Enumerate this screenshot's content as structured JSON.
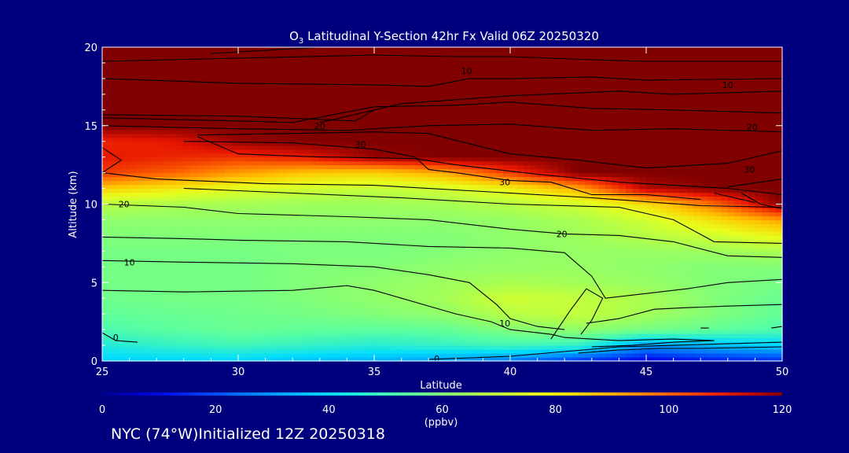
{
  "footer_text": "NYC (74°W)Initialized 12Z 20250318",
  "chart_data": {
    "type": "heatmap",
    "title_species": "O",
    "title_subscript": "3",
    "title_rest": " Latitudinal Y-Section 42hr  Fx Valid 06Z 20250320",
    "xlabel": "Latitude",
    "ylabel": "Altitude (km)",
    "xlim": [
      25,
      50
    ],
    "ylim": [
      0,
      20
    ],
    "x_ticks": [
      "25",
      "30",
      "35",
      "40",
      "45",
      "50"
    ],
    "y_ticks": [
      "0",
      "5",
      "10",
      "15",
      "20"
    ],
    "colorbar": {
      "ticks": [
        "0",
        "20",
        "40",
        "60",
        "80",
        "100",
        "120"
      ],
      "range": [
        0,
        120
      ],
      "units": "(ppbv)"
    },
    "field_description_values": {
      "latitudes": [
        25,
        27.5,
        30,
        32.5,
        35,
        37.5,
        40,
        42.5,
        45,
        47.5,
        50
      ],
      "altitudes": [
        0,
        1,
        2,
        3,
        4,
        5,
        6,
        7,
        8,
        9,
        10,
        11,
        12,
        13,
        14,
        15,
        16,
        17,
        18,
        19,
        20
      ],
      "ozone_ppbv": [
        [
          38,
          38,
          38,
          35,
          33,
          30,
          25,
          15,
          8,
          12,
          15
        ],
        [
          45,
          48,
          50,
          48,
          46,
          48,
          50,
          48,
          30,
          35,
          38
        ],
        [
          52,
          54,
          56,
          55,
          54,
          55,
          60,
          62,
          58,
          55,
          52
        ],
        [
          55,
          56,
          57,
          58,
          60,
          62,
          68,
          70,
          65,
          60,
          55
        ],
        [
          57,
          58,
          58,
          60,
          62,
          65,
          72,
          70,
          66,
          60,
          56
        ],
        [
          58,
          58,
          58,
          60,
          62,
          64,
          66,
          65,
          63,
          60,
          58
        ],
        [
          58,
          58,
          58,
          60,
          60,
          62,
          63,
          63,
          62,
          60,
          60
        ],
        [
          58,
          58,
          58,
          59,
          59,
          60,
          62,
          63,
          63,
          64,
          66
        ],
        [
          60,
          60,
          60,
          60,
          60,
          60,
          62,
          64,
          68,
          72,
          78
        ],
        [
          62,
          62,
          62,
          62,
          62,
          62,
          63,
          66,
          72,
          82,
          92
        ],
        [
          68,
          66,
          65,
          64,
          64,
          65,
          68,
          72,
          82,
          98,
          120
        ],
        [
          85,
          80,
          75,
          72,
          70,
          72,
          78,
          90,
          115,
          120,
          120
        ],
        [
          105,
          100,
          92,
          86,
          84,
          90,
          105,
          120,
          120,
          120,
          120
        ],
        [
          110,
          108,
          106,
          110,
          118,
          120,
          120,
          120,
          120,
          120,
          120
        ],
        [
          108,
          110,
          118,
          120,
          120,
          120,
          120,
          120,
          120,
          120,
          120
        ],
        [
          120,
          120,
          120,
          120,
          120,
          120,
          120,
          120,
          120,
          120,
          120
        ],
        [
          120,
          120,
          120,
          120,
          120,
          120,
          120,
          120,
          120,
          120,
          120
        ],
        [
          120,
          120,
          120,
          120,
          120,
          120,
          120,
          120,
          120,
          120,
          120
        ],
        [
          120,
          120,
          120,
          120,
          120,
          120,
          120,
          120,
          120,
          120,
          120
        ],
        [
          120,
          120,
          120,
          120,
          120,
          120,
          120,
          120,
          120,
          120,
          120
        ],
        [
          120,
          120,
          120,
          120,
          120,
          120,
          120,
          120,
          120,
          120,
          120
        ]
      ]
    },
    "contours": [
      {
        "label": "0",
        "points": [
          [
            25,
            1.8
          ],
          [
            25.5,
            1.3
          ],
          [
            26.3,
            1.2
          ]
        ]
      },
      {
        "label": "0",
        "points": [
          [
            37,
            0.1
          ],
          [
            40,
            0.3
          ],
          [
            42,
            0.6
          ],
          [
            44,
            0.9
          ],
          [
            46,
            1.0
          ],
          [
            48,
            1.1
          ],
          [
            50,
            1.2
          ]
        ]
      },
      {
        "label": "",
        "points": [
          [
            42.5,
            0.5
          ],
          [
            44,
            0.7
          ],
          [
            45.5,
            0.8
          ],
          [
            47,
            0.8
          ],
          [
            50,
            0.9
          ]
        ]
      },
      {
        "label": "",
        "points": [
          [
            43,
            0.9
          ],
          [
            44.5,
            1.0
          ],
          [
            46,
            1.2
          ],
          [
            47.5,
            1.3
          ]
        ]
      },
      {
        "label": "",
        "points": [
          [
            41.5,
            1.4
          ],
          [
            42.2,
            3.2
          ],
          [
            42.8,
            4.6
          ],
          [
            43.4,
            4.0
          ],
          [
            43.0,
            2.6
          ],
          [
            42.6,
            1.7
          ]
        ]
      },
      {
        "label": "",
        "points": [
          [
            47,
            2.1
          ],
          [
            47.3,
            2.1
          ]
        ]
      },
      {
        "label": "",
        "points": [
          [
            49.6,
            2.1
          ],
          [
            50,
            2.2
          ]
        ]
      },
      {
        "label": "10",
        "points": [
          [
            25,
            4.5
          ],
          [
            28,
            4.4
          ],
          [
            32,
            4.5
          ],
          [
            34,
            4.8
          ],
          [
            35,
            4.5
          ],
          [
            36,
            4.0
          ],
          [
            38,
            3.0
          ],
          [
            39.3,
            2.5
          ],
          [
            40,
            2.0
          ],
          [
            41.5,
            1.7
          ],
          [
            42,
            1.5
          ],
          [
            44,
            1.3
          ],
          [
            46,
            1.4
          ],
          [
            47.5,
            1.3
          ]
        ]
      },
      {
        "label": "10",
        "points": [
          [
            25,
            6.4
          ],
          [
            28,
            6.3
          ],
          [
            32,
            6.2
          ],
          [
            35,
            6.0
          ],
          [
            37,
            5.5
          ],
          [
            38.5,
            5.0
          ],
          [
            39.5,
            3.6
          ],
          [
            40,
            2.7
          ],
          [
            41,
            2.2
          ],
          [
            42,
            2.0
          ]
        ]
      },
      {
        "label": "",
        "points": [
          [
            42.8,
            2.4
          ],
          [
            44,
            2.7
          ],
          [
            45.3,
            3.3
          ],
          [
            46.5,
            3.4
          ],
          [
            48,
            3.5
          ],
          [
            50,
            3.6
          ]
        ]
      },
      {
        "label": "",
        "points": [
          [
            25,
            7.9
          ],
          [
            28,
            7.8
          ],
          [
            30,
            7.7
          ],
          [
            34,
            7.6
          ],
          [
            37,
            7.3
          ],
          [
            40,
            7.2
          ],
          [
            42,
            6.9
          ],
          [
            43,
            5.4
          ],
          [
            43.5,
            4.0
          ],
          [
            45,
            4.3
          ],
          [
            46.5,
            4.6
          ],
          [
            48,
            5.0
          ],
          [
            50,
            5.2
          ]
        ]
      },
      {
        "label": "20",
        "points": [
          [
            25,
            10.0
          ],
          [
            28,
            9.8
          ],
          [
            30,
            9.4
          ],
          [
            34,
            9.2
          ],
          [
            37,
            9.0
          ],
          [
            40,
            8.4
          ],
          [
            42,
            8.1
          ],
          [
            44,
            8.0
          ],
          [
            46,
            7.6
          ],
          [
            48,
            6.7
          ],
          [
            50,
            6.6
          ]
        ]
      },
      {
        "label": "20",
        "points": [
          [
            28,
            11.0
          ],
          [
            32,
            10.7
          ],
          [
            36,
            10.4
          ],
          [
            40,
            10.0
          ],
          [
            44,
            9.8
          ],
          [
            46,
            9.0
          ],
          [
            47.5,
            7.6
          ],
          [
            50,
            7.5
          ]
        ]
      },
      {
        "label": "",
        "points": [
          [
            25,
            13.6
          ],
          [
            25.7,
            12.8
          ],
          [
            25,
            12.0
          ],
          [
            27,
            11.6
          ],
          [
            31,
            11.3
          ],
          [
            35,
            11.2
          ],
          [
            39,
            10.8
          ],
          [
            43,
            10.4
          ],
          [
            47,
            9.9
          ],
          [
            50,
            9.8
          ]
        ]
      },
      {
        "label": "30",
        "points": [
          [
            28,
            14.0
          ],
          [
            32,
            13.9
          ],
          [
            35,
            13.5
          ],
          [
            36.5,
            13.0
          ],
          [
            37,
            12.2
          ],
          [
            38,
            12.0
          ],
          [
            40,
            11.5
          ],
          [
            41.5,
            11.4
          ],
          [
            43,
            10.6
          ],
          [
            45,
            10.6
          ],
          [
            47,
            10.3
          ]
        ]
      },
      {
        "label": "",
        "points": [
          [
            28.5,
            14.3
          ],
          [
            30,
            13.2
          ],
          [
            33,
            13.0
          ],
          [
            36.5,
            12.9
          ],
          [
            38,
            12.5
          ],
          [
            41,
            11.9
          ],
          [
            44,
            11.4
          ],
          [
            48,
            11.0
          ],
          [
            50,
            10.6
          ]
        ]
      },
      {
        "label": "30",
        "points": [
          [
            28.5,
            14.4
          ],
          [
            32,
            14.5
          ],
          [
            35,
            14.6
          ],
          [
            37,
            14.5
          ],
          [
            40,
            13.2
          ],
          [
            42.5,
            12.8
          ],
          [
            45,
            12.3
          ],
          [
            48,
            12.6
          ],
          [
            50,
            13.4
          ]
        ]
      },
      {
        "label": "",
        "points": [
          [
            48,
            11.1
          ],
          [
            50,
            11.6
          ]
        ]
      },
      {
        "label": "",
        "points": [
          [
            48.5,
            10.7
          ],
          [
            49.2,
            10.0
          ],
          [
            50,
            9.7
          ]
        ]
      },
      {
        "label": "30",
        "points": [
          [
            47.5,
            10.7
          ],
          [
            49,
            10.1
          ]
        ]
      },
      {
        "label": "20",
        "points": [
          [
            25,
            15.0
          ],
          [
            30,
            14.8
          ],
          [
            34,
            14.7
          ],
          [
            37,
            15.0
          ],
          [
            40,
            15.1
          ],
          [
            43,
            14.7
          ],
          [
            46,
            14.8
          ],
          [
            50,
            14.6
          ]
        ]
      },
      {
        "label": "",
        "points": [
          [
            25,
            15.5
          ],
          [
            30,
            15.3
          ],
          [
            32,
            15.2
          ],
          [
            35,
            16.2
          ],
          [
            38,
            16.3
          ],
          [
            40,
            16.5
          ],
          [
            43,
            16.1
          ],
          [
            46,
            16.0
          ],
          [
            50,
            15.8
          ]
        ]
      },
      {
        "label": "",
        "points": [
          [
            25,
            15.7
          ],
          [
            30,
            15.6
          ],
          [
            33,
            15.4
          ],
          [
            34.3,
            15.3
          ],
          [
            35,
            16.0
          ]
        ]
      },
      {
        "label": "",
        "points": [
          [
            33,
            15.2
          ],
          [
            36,
            16.4
          ],
          [
            40,
            16.9
          ],
          [
            44,
            17.2
          ],
          [
            46,
            17.0
          ],
          [
            48,
            17.1
          ],
          [
            50,
            17.2
          ]
        ]
      },
      {
        "label": "10",
        "points": [
          [
            25,
            18.0
          ],
          [
            30,
            17.7
          ],
          [
            35,
            17.6
          ],
          [
            37,
            17.5
          ],
          [
            38.5,
            18.0
          ],
          [
            40,
            18.0
          ],
          [
            43,
            18.1
          ],
          [
            45,
            17.9
          ],
          [
            50,
            18.0
          ]
        ]
      },
      {
        "label": "10",
        "points": [
          [
            25,
            19.1
          ],
          [
            30,
            19.3
          ],
          [
            35,
            19.5
          ],
          [
            38,
            19.4
          ],
          [
            40,
            19.4
          ],
          [
            43,
            19.2
          ],
          [
            45,
            19.1
          ],
          [
            50,
            19.1
          ]
        ]
      },
      {
        "label": "",
        "points": [
          [
            29,
            19.6
          ],
          [
            33,
            20.0
          ]
        ]
      }
    ],
    "contour_labels": [
      {
        "text": "0",
        "x": 25.5,
        "y": 1.5
      },
      {
        "text": "0",
        "x": 37.3,
        "y": 0.15
      },
      {
        "text": "10",
        "x": 39.8,
        "y": 2.4
      },
      {
        "text": "10",
        "x": 26.0,
        "y": 6.3
      },
      {
        "text": "20",
        "x": 25.8,
        "y": 10.0
      },
      {
        "text": "20",
        "x": 41.9,
        "y": 8.1
      },
      {
        "text": "30",
        "x": 39.8,
        "y": 11.4
      },
      {
        "text": "30",
        "x": 34.5,
        "y": 13.8
      },
      {
        "text": "30",
        "x": 48.8,
        "y": 12.2
      },
      {
        "text": "20",
        "x": 33.0,
        "y": 15.0
      },
      {
        "text": "20",
        "x": 48.9,
        "y": 14.9
      },
      {
        "text": "10",
        "x": 38.4,
        "y": 18.5
      },
      {
        "text": "10",
        "x": 48.0,
        "y": 17.6
      }
    ]
  }
}
